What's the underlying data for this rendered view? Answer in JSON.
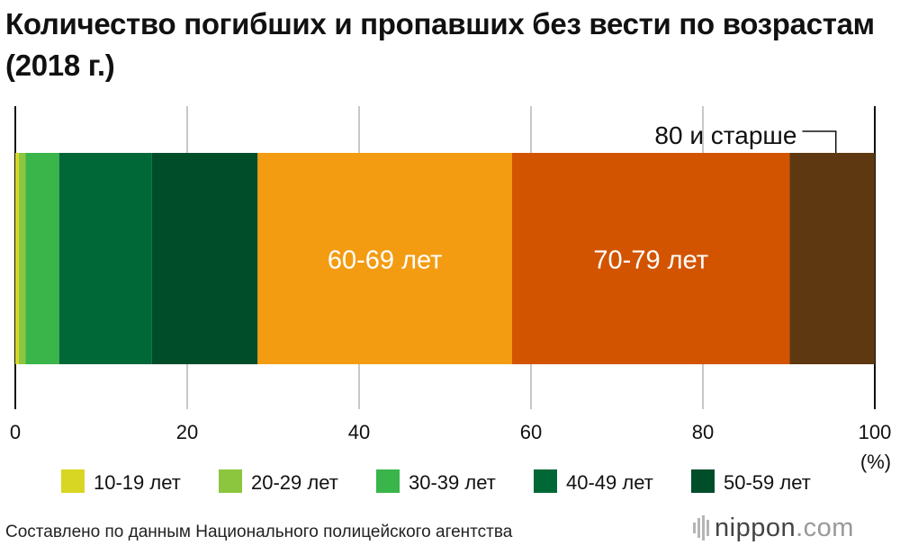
{
  "title": "Количество погибших и пропавших без вести по возрастам (2018 г.)",
  "source": "Составлено по данным Национального полицейского агентства",
  "logo": {
    "brand": "nippon",
    "tld": ".com"
  },
  "chart_data": {
    "type": "bar",
    "orientation": "horizontal-stacked-100",
    "title": "Количество погибших и пропавших без вести по возрастам (2018 г.)",
    "xlim": [
      0,
      100
    ],
    "xticks": [
      "0",
      "20",
      "40",
      "60",
      "80",
      "100"
    ],
    "xunit": "(%)",
    "grid": true,
    "legend_position": "bottom",
    "series": [
      {
        "name": "10-19 лет",
        "value": 0.4,
        "color": "#d8d622",
        "label": ""
      },
      {
        "name": "20-29 лет",
        "value": 0.8,
        "color": "#8cc63f",
        "label": ""
      },
      {
        "name": "30-39 лет",
        "value": 3.9,
        "color": "#39b54a",
        "label": ""
      },
      {
        "name": "40-49 лет",
        "value": 10.8,
        "color": "#006837",
        "label": ""
      },
      {
        "name": "50-59 лет",
        "value": 12.3,
        "color": "#004d2a",
        "label": ""
      },
      {
        "name": "60-69 лет",
        "value": 29.6,
        "color": "#f39c12",
        "label": "60-69 лет"
      },
      {
        "name": "70-79 лет",
        "value": 32.3,
        "color": "#d35400",
        "label": "70-79 лет"
      },
      {
        "name": "80 и старше",
        "value": 9.9,
        "color": "#5e3811",
        "label": "80 и старше"
      }
    ],
    "legend_entries": [
      "10-19 лет",
      "20-29 лет",
      "30-39 лет",
      "40-49 лет",
      "50-59 лет"
    ]
  }
}
